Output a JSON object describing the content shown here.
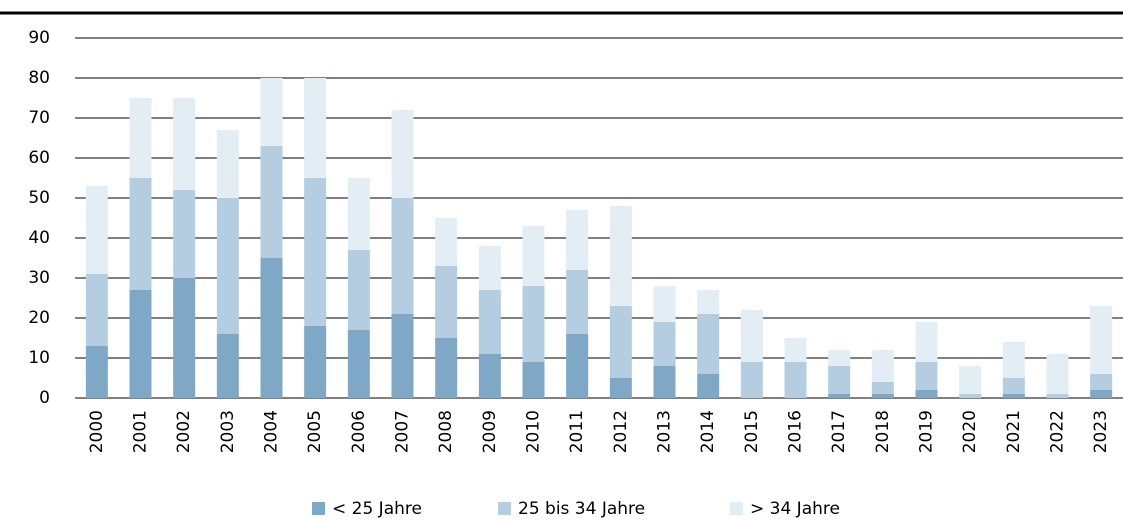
{
  "chart_data": {
    "type": "bar",
    "stacked": true,
    "categories": [
      "2000",
      "2001",
      "2002",
      "2003",
      "2004",
      "2005",
      "2006",
      "2007",
      "2008",
      "2009",
      "2010",
      "2011",
      "2012",
      "2013",
      "2014",
      "2015",
      "2016",
      "2017",
      "2018",
      "2019",
      "2020",
      "2021",
      "2022",
      "2023"
    ],
    "series": [
      {
        "name": "< 25 Jahre",
        "color": "#7ea8c5",
        "values": [
          13,
          27,
          30,
          16,
          35,
          18,
          17,
          21,
          15,
          11,
          9,
          16,
          5,
          8,
          6,
          0,
          0,
          1,
          1,
          2,
          0,
          1,
          0,
          2
        ]
      },
      {
        "name": "25 bis 34 Jahre",
        "color": "#b4cde0",
        "values": [
          18,
          28,
          22,
          34,
          28,
          37,
          20,
          29,
          18,
          16,
          19,
          16,
          18,
          11,
          15,
          9,
          9,
          7,
          3,
          7,
          1,
          4,
          1,
          4
        ]
      },
      {
        "name": "> 34 Jahre",
        "color": "#e3edf4",
        "values": [
          22,
          20,
          23,
          17,
          17,
          25,
          18,
          22,
          12,
          11,
          15,
          15,
          25,
          9,
          6,
          13,
          6,
          4,
          8,
          10,
          7,
          9,
          10,
          17
        ]
      }
    ],
    "ylim": [
      0,
      90
    ],
    "yticks": [
      0,
      10,
      20,
      30,
      40,
      50,
      60,
      70,
      80,
      90
    ],
    "grid": true,
    "legend": "bottom"
  }
}
